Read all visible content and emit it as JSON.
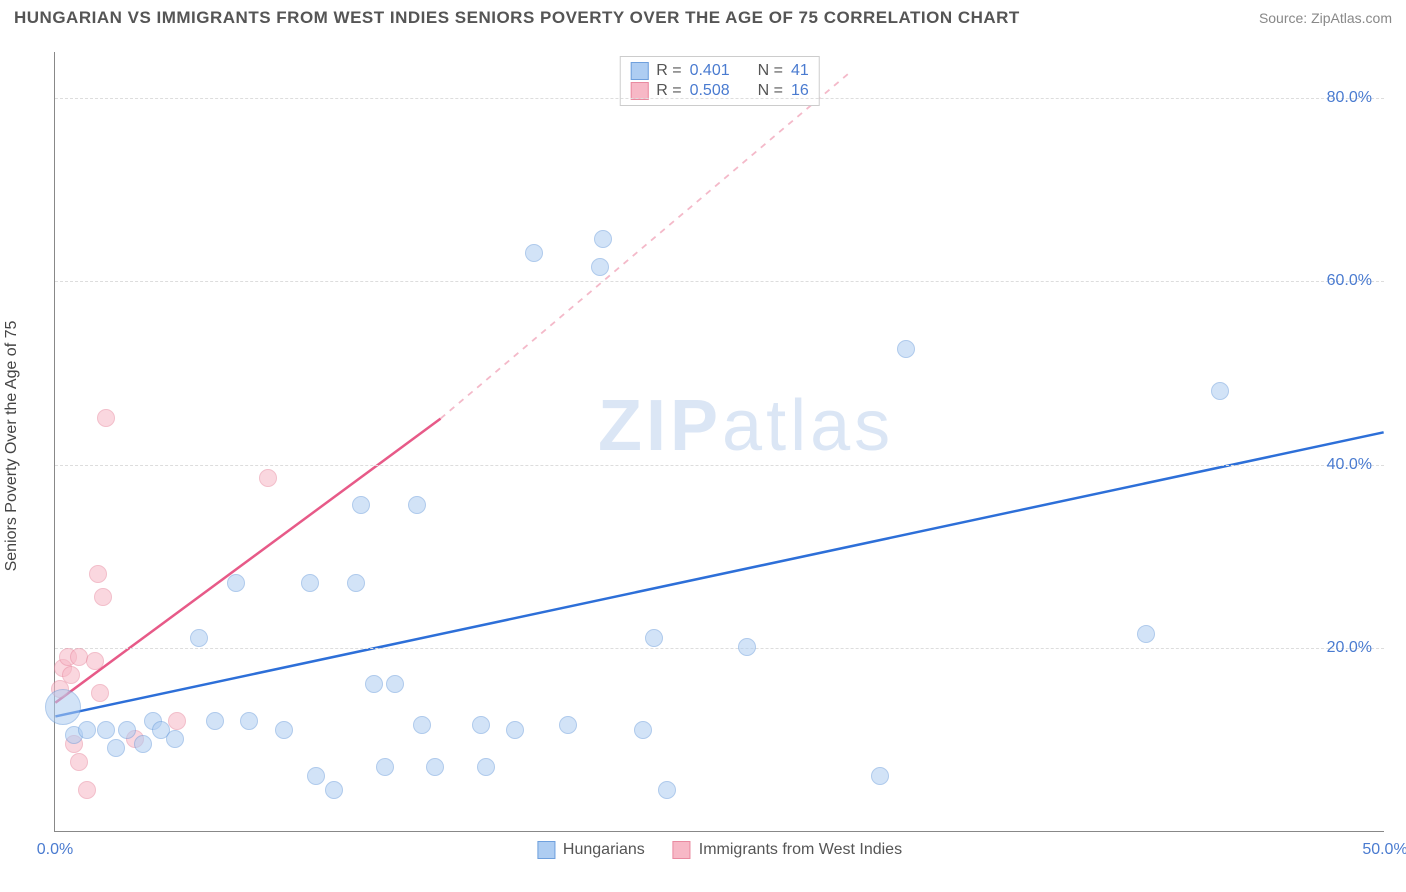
{
  "header": {
    "title": "HUNGARIAN VS IMMIGRANTS FROM WEST INDIES SENIORS POVERTY OVER THE AGE OF 75 CORRELATION CHART",
    "source": "Source: ZipAtlas.com"
  },
  "watermark": {
    "zip": "ZIP",
    "atlas": "atlas"
  },
  "chart": {
    "type": "scatter",
    "ylabel": "Seniors Poverty Over the Age of 75",
    "xlim": [
      0,
      50
    ],
    "ylim": [
      0,
      85
    ],
    "xticks": [
      {
        "v": 0,
        "label": "0.0%"
      },
      {
        "v": 50,
        "label": "50.0%"
      }
    ],
    "yticks": [
      {
        "v": 20,
        "label": "20.0%"
      },
      {
        "v": 40,
        "label": "40.0%"
      },
      {
        "v": 60,
        "label": "60.0%"
      },
      {
        "v": 80,
        "label": "80.0%"
      }
    ],
    "grid_color": "#dddddd",
    "background_color": "#ffffff",
    "axis_color": "#888888",
    "tick_color": "#4a7bd0",
    "series": [
      {
        "key": "hungarians",
        "label": "Hungarians",
        "fill": "#aecdf2",
        "fill_opacity": 0.55,
        "stroke": "#6fa0dd",
        "marker_r": 9,
        "trend": {
          "x1": 0,
          "y1": 12.5,
          "x2": 50,
          "y2": 43.5,
          "color": "#2d6fd8",
          "width": 2.5,
          "dash": "none"
        },
        "points": [
          {
            "x": 0.3,
            "y": 13.5,
            "r": 18
          },
          {
            "x": 0.7,
            "y": 10.5
          },
          {
            "x": 1.2,
            "y": 11.0
          },
          {
            "x": 1.9,
            "y": 11.0
          },
          {
            "x": 2.3,
            "y": 9.0
          },
          {
            "x": 2.7,
            "y": 11.0
          },
          {
            "x": 3.3,
            "y": 9.5
          },
          {
            "x": 3.7,
            "y": 12.0
          },
          {
            "x": 4.0,
            "y": 11.0
          },
          {
            "x": 4.5,
            "y": 10.0
          },
          {
            "x": 5.4,
            "y": 21.0
          },
          {
            "x": 6.0,
            "y": 12.0
          },
          {
            "x": 6.8,
            "y": 27.0
          },
          {
            "x": 7.3,
            "y": 12.0
          },
          {
            "x": 8.6,
            "y": 11.0
          },
          {
            "x": 9.6,
            "y": 27.0
          },
          {
            "x": 9.8,
            "y": 6.0
          },
          {
            "x": 10.5,
            "y": 4.5
          },
          {
            "x": 11.3,
            "y": 27.0
          },
          {
            "x": 11.5,
            "y": 35.5
          },
          {
            "x": 12.0,
            "y": 16.0
          },
          {
            "x": 12.4,
            "y": 7.0
          },
          {
            "x": 12.8,
            "y": 16.0
          },
          {
            "x": 13.6,
            "y": 35.5
          },
          {
            "x": 13.8,
            "y": 11.5
          },
          {
            "x": 14.3,
            "y": 7.0
          },
          {
            "x": 16.0,
            "y": 11.5
          },
          {
            "x": 16.2,
            "y": 7.0
          },
          {
            "x": 17.3,
            "y": 11.0
          },
          {
            "x": 18.0,
            "y": 63.0
          },
          {
            "x": 19.3,
            "y": 11.5
          },
          {
            "x": 20.6,
            "y": 64.5
          },
          {
            "x": 20.5,
            "y": 61.5
          },
          {
            "x": 22.1,
            "y": 11.0
          },
          {
            "x": 22.5,
            "y": 21.0
          },
          {
            "x": 23.0,
            "y": 4.5
          },
          {
            "x": 26.0,
            "y": 20.0
          },
          {
            "x": 31.0,
            "y": 6.0
          },
          {
            "x": 32.0,
            "y": 52.5
          },
          {
            "x": 41.0,
            "y": 21.5
          },
          {
            "x": 43.8,
            "y": 48.0
          }
        ]
      },
      {
        "key": "west_indies",
        "label": "Immigrants from West Indies",
        "fill": "#f7b8c6",
        "fill_opacity": 0.55,
        "stroke": "#e98aa0",
        "marker_r": 9,
        "trend_solid": {
          "x1": 0,
          "y1": 14.0,
          "x2": 14.5,
          "y2": 45.0,
          "color": "#e75a88",
          "width": 2.5
        },
        "trend_dash": {
          "x1": 14.5,
          "y1": 45.0,
          "x2": 30.0,
          "y2": 83.0,
          "color": "#f4b9c9",
          "width": 1.8
        },
        "points": [
          {
            "x": 0.2,
            "y": 15.5
          },
          {
            "x": 0.3,
            "y": 17.8
          },
          {
            "x": 0.5,
            "y": 19.0
          },
          {
            "x": 0.6,
            "y": 17.0
          },
          {
            "x": 0.9,
            "y": 19.0
          },
          {
            "x": 0.7,
            "y": 9.5
          },
          {
            "x": 0.9,
            "y": 7.5
          },
          {
            "x": 1.2,
            "y": 4.5
          },
          {
            "x": 1.5,
            "y": 18.5
          },
          {
            "x": 1.6,
            "y": 28.0
          },
          {
            "x": 1.7,
            "y": 15.0
          },
          {
            "x": 1.8,
            "y": 25.5
          },
          {
            "x": 1.9,
            "y": 45.0
          },
          {
            "x": 3.0,
            "y": 10.0
          },
          {
            "x": 4.6,
            "y": 12.0
          },
          {
            "x": 8.0,
            "y": 38.5
          }
        ]
      }
    ],
    "legend_top": {
      "r_label": "R =",
      "n_label": "N =",
      "rows": [
        {
          "swatch_fill": "#aecdf2",
          "swatch_stroke": "#6fa0dd",
          "r": "0.401",
          "n": "41"
        },
        {
          "swatch_fill": "#f7b8c6",
          "swatch_stroke": "#e98aa0",
          "r": "0.508",
          "n": "16"
        }
      ]
    }
  }
}
